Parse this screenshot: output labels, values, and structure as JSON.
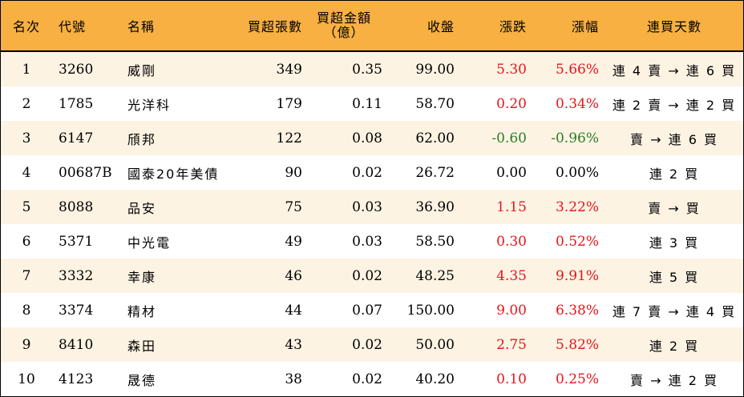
{
  "headers": {
    "rank": "名次",
    "code": "代號",
    "name": "名稱",
    "volume": "買超張數",
    "amount_line1": "買超金額",
    "amount_line2": "（億）",
    "close": "收盤",
    "change": "漲跌",
    "pct": "漲幅",
    "days": "連買天數"
  },
  "colors": {
    "header_bg": "#f7b041",
    "stripe_bg": "#fdf3e3",
    "up": "#e8141c",
    "down": "#2a7d24"
  },
  "rows": [
    {
      "rank": "1",
      "code": "3260",
      "name": "威剛",
      "volume": "349",
      "amount": "0.35",
      "close": "99.00",
      "change": "5.30",
      "pct": "5.66%",
      "days": "連 4 賣 → 連 6 買",
      "dir": "up"
    },
    {
      "rank": "2",
      "code": "1785",
      "name": "光洋科",
      "volume": "179",
      "amount": "0.11",
      "close": "58.70",
      "change": "0.20",
      "pct": "0.34%",
      "days": "連 2 賣 → 連 2 買",
      "dir": "up"
    },
    {
      "rank": "3",
      "code": "6147",
      "name": "頎邦",
      "volume": "122",
      "amount": "0.08",
      "close": "62.00",
      "change": "-0.60",
      "pct": "-0.96%",
      "days": "賣 → 連 6 買",
      "dir": "down"
    },
    {
      "rank": "4",
      "code": "00687B",
      "name": "國泰20年美債",
      "volume": "90",
      "amount": "0.02",
      "close": "26.72",
      "change": "0.00",
      "pct": "0.00%",
      "days": "連 2 買",
      "dir": "flat"
    },
    {
      "rank": "5",
      "code": "8088",
      "name": "品安",
      "volume": "75",
      "amount": "0.03",
      "close": "36.90",
      "change": "1.15",
      "pct": "3.22%",
      "days": "賣 → 買",
      "dir": "up"
    },
    {
      "rank": "6",
      "code": "5371",
      "name": "中光電",
      "volume": "49",
      "amount": "0.03",
      "close": "58.50",
      "change": "0.30",
      "pct": "0.52%",
      "days": "連 3 買",
      "dir": "up"
    },
    {
      "rank": "7",
      "code": "3332",
      "name": "幸康",
      "volume": "46",
      "amount": "0.02",
      "close": "48.25",
      "change": "4.35",
      "pct": "9.91%",
      "days": "連 5 買",
      "dir": "up"
    },
    {
      "rank": "8",
      "code": "3374",
      "name": "精材",
      "volume": "44",
      "amount": "0.07",
      "close": "150.00",
      "change": "9.00",
      "pct": "6.38%",
      "days": "連 7 賣 → 連 4 買",
      "dir": "up"
    },
    {
      "rank": "9",
      "code": "8410",
      "name": "森田",
      "volume": "43",
      "amount": "0.02",
      "close": "50.00",
      "change": "2.75",
      "pct": "5.82%",
      "days": "連 2 買",
      "dir": "up"
    },
    {
      "rank": "10",
      "code": "4123",
      "name": "晟德",
      "volume": "38",
      "amount": "0.02",
      "close": "40.20",
      "change": "0.10",
      "pct": "0.25%",
      "days": "賣 → 連 2 買",
      "dir": "up"
    }
  ]
}
